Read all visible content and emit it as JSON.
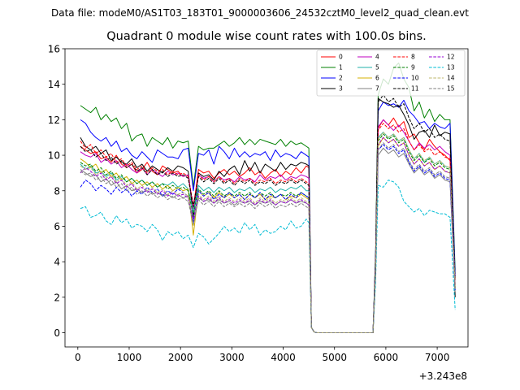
{
  "supertitle": "Data file: modeM0/AS1T03_183T01_9000003606_24532cztM0_level2_quad_clean.evt",
  "chart_data": {
    "type": "line",
    "title": "Quadrant 0 module wise count rates with 100.0s bins.",
    "xlabel": "",
    "ylabel": "",
    "x_offset_label": "+3.243e8",
    "xlim": [
      -250,
      7600
    ],
    "ylim": [
      -0.8,
      16
    ],
    "x_ticks": [
      0,
      1000,
      2000,
      3000,
      4000,
      5000,
      6000,
      7000
    ],
    "y_ticks": [
      0,
      2,
      4,
      6,
      8,
      10,
      12,
      14,
      16
    ],
    "legend_position": "top-right",
    "x": [
      50,
      150,
      250,
      350,
      450,
      550,
      650,
      750,
      850,
      950,
      1050,
      1150,
      1250,
      1350,
      1450,
      1550,
      1650,
      1750,
      1850,
      1950,
      2050,
      2150,
      2250,
      2350,
      2450,
      2550,
      2650,
      2750,
      2850,
      2950,
      3050,
      3150,
      3250,
      3350,
      3450,
      3550,
      3650,
      3750,
      3850,
      3950,
      4050,
      4150,
      4250,
      4350,
      4450,
      4500,
      4550,
      4600,
      4650,
      5750,
      5800,
      5850,
      5950,
      6050,
      6150,
      6250,
      6350,
      6450,
      6550,
      6650,
      6750,
      6850,
      6950,
      7050,
      7150,
      7250,
      7350
    ],
    "series": [
      {
        "name": "0",
        "color": "#ff0000",
        "dash": "solid",
        "values": [
          10.5,
          10.3,
          10.1,
          10.2,
          9.8,
          9.9,
          9.6,
          10.0,
          9.5,
          9.3,
          9.5,
          9.0,
          9.2,
          9.6,
          9.1,
          8.9,
          9.4,
          9.2,
          9.0,
          9.1,
          8.8,
          8.9,
          7.0,
          9.2,
          9.0,
          9.1,
          8.7,
          9.0,
          9.2,
          8.9,
          9.1,
          8.8,
          9.0,
          9.3,
          8.9,
          9.1,
          8.7,
          9.0,
          9.2,
          8.8,
          9.1,
          8.9,
          9.3,
          9.0,
          9.4,
          9.3,
          0.3,
          0.05,
          0.0,
          0.0,
          4.0,
          11.5,
          12.0,
          11.7,
          12.1,
          11.6,
          11.9,
          11.0,
          11.2,
          10.7,
          10.3,
          10.9,
          10.5,
          10.2,
          10.0,
          9.7,
          3.0
        ]
      },
      {
        "name": "1",
        "color": "#008000",
        "dash": "solid",
        "values": [
          12.8,
          12.6,
          12.4,
          12.7,
          12.0,
          12.3,
          11.9,
          12.1,
          11.5,
          11.8,
          10.8,
          11.1,
          11.2,
          10.5,
          11.0,
          10.8,
          10.6,
          11.0,
          10.4,
          10.8,
          10.7,
          10.8,
          8.2,
          10.5,
          10.3,
          10.4,
          10.4,
          10.6,
          10.8,
          10.5,
          10.7,
          11.0,
          10.6,
          10.9,
          10.6,
          10.9,
          10.8,
          10.7,
          10.6,
          10.9,
          10.5,
          10.8,
          10.6,
          10.7,
          10.5,
          10.4,
          0.3,
          0.05,
          0.0,
          0.0,
          4.5,
          13.4,
          14.3,
          14.0,
          14.9,
          15.2,
          14.3,
          13.8,
          12.5,
          13.0,
          12.1,
          12.6,
          11.9,
          12.3,
          12.0,
          12.0,
          3.5
        ]
      },
      {
        "name": "2",
        "color": "#0000ff",
        "dash": "solid",
        "values": [
          12.0,
          11.8,
          11.3,
          11.0,
          10.8,
          11.0,
          10.5,
          10.8,
          10.2,
          10.4,
          10.0,
          9.8,
          10.2,
          9.9,
          9.6,
          10.3,
          10.1,
          9.9,
          9.9,
          9.8,
          10.3,
          10.4,
          8.0,
          10.1,
          10.0,
          10.3,
          9.5,
          10.5,
          10.2,
          9.8,
          10.4,
          9.9,
          10.2,
          9.9,
          10.1,
          10.0,
          10.2,
          9.7,
          10.3,
          9.9,
          10.1,
          10.0,
          9.8,
          10.2,
          10.0,
          9.9,
          0.3,
          0.05,
          0.0,
          0.0,
          4.3,
          12.5,
          13.0,
          12.8,
          12.9,
          12.7,
          13.1,
          12.5,
          12.2,
          11.8,
          11.9,
          11.5,
          11.8,
          11.6,
          11.5,
          11.8,
          3.2
        ]
      },
      {
        "name": "3",
        "color": "#000000",
        "dash": "solid",
        "values": [
          11.0,
          10.5,
          10.3,
          10.5,
          10.1,
          10.3,
          9.7,
          9.9,
          9.6,
          9.5,
          9.8,
          9.3,
          9.5,
          9.1,
          9.4,
          9.2,
          9.0,
          9.3,
          9.1,
          9.4,
          9.3,
          9.1,
          6.5,
          9.0,
          8.8,
          8.9,
          8.6,
          9.1,
          8.8,
          9.2,
          9.4,
          8.9,
          9.7,
          9.1,
          9.6,
          9.0,
          9.5,
          9.3,
          9.1,
          9.6,
          9.2,
          9.5,
          9.4,
          9.6,
          9.5,
          9.4,
          0.3,
          0.05,
          0.0,
          0.0,
          4.2,
          13.2,
          13.0,
          12.9,
          12.7,
          12.8,
          12.3,
          11.7,
          10.9,
          11.3,
          11.4,
          11.0,
          11.7,
          11.1,
          11.3,
          11.2,
          2.0
        ]
      },
      {
        "name": "4",
        "color": "#c000c0",
        "dash": "solid",
        "values": [
          10.2,
          10.0,
          9.9,
          10.1,
          9.6,
          9.8,
          9.5,
          9.7,
          9.3,
          9.5,
          9.2,
          9.0,
          9.3,
          8.9,
          9.2,
          9.0,
          8.8,
          9.1,
          8.9,
          9.0,
          8.8,
          8.9,
          7.0,
          8.9,
          8.7,
          8.8,
          8.5,
          8.8,
          8.6,
          8.7,
          8.5,
          8.8,
          8.6,
          8.7,
          8.5,
          8.9,
          8.6,
          8.8,
          8.7,
          8.9,
          8.6,
          8.8,
          8.7,
          8.9,
          8.8,
          8.7,
          0.3,
          0.05,
          0.0,
          0.0,
          3.9,
          11.6,
          12.0,
          11.7,
          11.4,
          11.7,
          11.3,
          10.8,
          10.3,
          10.7,
          10.4,
          10.6,
          10.3,
          10.5,
          10.2,
          10.0,
          2.8
        ]
      },
      {
        "name": "5",
        "color": "#20b2aa",
        "dash": "solid",
        "values": [
          9.5,
          9.2,
          9.4,
          9.0,
          9.1,
          8.8,
          9.0,
          8.6,
          8.8,
          8.5,
          8.7,
          8.4,
          8.6,
          8.3,
          8.5,
          8.2,
          8.4,
          8.3,
          8.5,
          8.2,
          8.4,
          8.1,
          6.8,
          8.3,
          8.0,
          8.2,
          7.9,
          8.2,
          8.0,
          8.2,
          7.9,
          8.1,
          8.0,
          8.2,
          7.9,
          8.1,
          8.0,
          8.2,
          7.9,
          8.1,
          8.0,
          8.2,
          8.1,
          8.3,
          8.0,
          8.0,
          0.3,
          0.05,
          0.0,
          0.0,
          3.7,
          11.0,
          11.3,
          11.0,
          11.2,
          10.8,
          11.0,
          10.3,
          9.8,
          10.1,
          9.6,
          9.9,
          9.5,
          9.7,
          9.4,
          9.3,
          2.6
        ]
      },
      {
        "name": "6",
        "color": "#d4b000",
        "dash": "solid",
        "values": [
          9.8,
          9.6,
          9.3,
          9.5,
          9.0,
          9.2,
          8.8,
          9.0,
          8.6,
          8.8,
          8.4,
          8.6,
          8.3,
          8.5,
          8.2,
          8.4,
          8.1,
          8.3,
          8.0,
          8.2,
          8.0,
          8.1,
          5.5,
          8.0,
          7.7,
          7.9,
          7.6,
          7.9,
          7.6,
          7.8,
          7.6,
          7.8,
          7.5,
          7.8,
          7.6,
          7.8,
          7.5,
          7.7,
          7.6,
          7.8,
          7.5,
          7.7,
          7.6,
          7.8,
          7.6,
          7.5,
          0.3,
          0.05,
          0.0,
          0.0,
          3.5,
          10.5,
          11.0,
          10.7,
          10.9,
          10.5,
          10.7,
          10.0,
          9.5,
          9.8,
          9.4,
          9.6,
          9.2,
          9.4,
          9.1,
          9.0,
          2.5
        ]
      },
      {
        "name": "7",
        "color": "#808080",
        "dash": "solid",
        "values": [
          9.2,
          9.0,
          8.8,
          8.9,
          8.5,
          8.7,
          8.3,
          8.5,
          8.1,
          8.3,
          8.0,
          8.1,
          7.9,
          8.0,
          7.8,
          7.9,
          7.7,
          7.8,
          7.6,
          7.8,
          7.6,
          7.7,
          6.2,
          7.6,
          7.4,
          7.5,
          7.3,
          7.5,
          7.3,
          7.4,
          7.2,
          7.4,
          7.3,
          7.4,
          7.2,
          7.4,
          7.3,
          7.4,
          7.2,
          7.4,
          7.3,
          7.5,
          7.3,
          7.4,
          7.3,
          7.2,
          0.3,
          0.05,
          0.0,
          0.0,
          3.3,
          10.0,
          10.4,
          10.1,
          10.3,
          9.9,
          10.1,
          9.5,
          9.0,
          9.3,
          8.9,
          9.1,
          8.7,
          8.9,
          8.6,
          8.5,
          2.3
        ]
      },
      {
        "name": "8",
        "color": "#ff0000",
        "dash": "dashed",
        "values": [
          10.8,
          10.4,
          10.6,
          10.1,
          10.3,
          9.9,
          10.1,
          9.6,
          9.8,
          9.4,
          9.6,
          9.2,
          9.4,
          9.0,
          9.3,
          9.1,
          9.2,
          8.9,
          9.1,
          8.9,
          9.0,
          8.8,
          7.2,
          8.9,
          8.6,
          8.8,
          8.5,
          8.8,
          8.5,
          8.7,
          8.4,
          8.7,
          8.5,
          8.7,
          8.4,
          8.6,
          8.5,
          8.7,
          8.4,
          8.6,
          8.5,
          8.7,
          8.5,
          8.7,
          8.5,
          8.4,
          0.3,
          0.05,
          0.0,
          0.0,
          3.8,
          11.4,
          11.8,
          11.5,
          11.7,
          11.3,
          11.5,
          10.8,
          10.3,
          10.6,
          10.2,
          10.4,
          10.0,
          10.2,
          9.9,
          9.8,
          2.7
        ]
      },
      {
        "name": "9",
        "color": "#008000",
        "dash": "dashed",
        "values": [
          9.6,
          9.4,
          9.5,
          9.1,
          9.3,
          8.9,
          9.1,
          8.7,
          8.9,
          8.5,
          8.7,
          8.4,
          8.6,
          8.3,
          8.5,
          8.2,
          8.4,
          8.1,
          8.3,
          8.1,
          8.2,
          8.0,
          6.6,
          8.1,
          7.8,
          8.0,
          7.7,
          8.0,
          7.7,
          7.9,
          7.7,
          7.9,
          7.7,
          7.9,
          7.6,
          7.9,
          7.7,
          7.9,
          7.6,
          7.8,
          7.7,
          7.9,
          7.7,
          7.9,
          7.7,
          7.6,
          0.3,
          0.05,
          0.0,
          0.0,
          3.6,
          10.8,
          11.2,
          10.9,
          11.1,
          10.7,
          10.9,
          10.2,
          9.7,
          10.0,
          9.6,
          9.8,
          9.4,
          9.6,
          9.3,
          9.2,
          2.5
        ]
      },
      {
        "name": "10",
        "color": "#0000ff",
        "dash": "dashed",
        "values": [
          8.2,
          8.6,
          8.4,
          8.0,
          8.3,
          8.1,
          7.8,
          8.2,
          7.9,
          8.1,
          7.7,
          8.0,
          7.8,
          8.2,
          7.9,
          8.1,
          7.7,
          8.0,
          7.8,
          8.1,
          7.9,
          7.7,
          6.2,
          8.0,
          7.7,
          7.9,
          7.5,
          7.8,
          7.6,
          7.9,
          7.6,
          7.8,
          7.5,
          7.8,
          7.6,
          7.9,
          7.5,
          7.8,
          7.6,
          7.8,
          7.5,
          7.8,
          7.6,
          7.9,
          7.7,
          7.6,
          0.3,
          0.05,
          0.0,
          0.0,
          3.4,
          10.3,
          10.6,
          10.3,
          10.5,
          10.1,
          10.3,
          9.6,
          9.1,
          9.4,
          9.0,
          9.2,
          8.8,
          9.0,
          8.7,
          8.6,
          2.4
        ]
      },
      {
        "name": "11",
        "color": "#000000",
        "dash": "dashed",
        "values": [
          10.5,
          10.2,
          10.3,
          9.9,
          10.1,
          9.7,
          9.9,
          9.5,
          9.7,
          9.3,
          9.5,
          9.1,
          9.3,
          8.9,
          9.2,
          8.9,
          9.1,
          8.8,
          9.0,
          8.8,
          8.9,
          8.7,
          7.1,
          8.8,
          8.5,
          8.7,
          8.4,
          8.7,
          8.4,
          8.6,
          8.3,
          8.6,
          8.4,
          8.6,
          8.3,
          8.5,
          8.4,
          8.6,
          8.3,
          8.5,
          8.4,
          8.6,
          8.4,
          8.6,
          8.4,
          8.3,
          0.3,
          0.05,
          0.0,
          0.0,
          4.0,
          13.0,
          13.4,
          13.0,
          13.2,
          12.7,
          12.9,
          12.1,
          11.5,
          11.8,
          11.3,
          11.5,
          11.0,
          11.2,
          10.9,
          10.8,
          3.0
        ]
      },
      {
        "name": "12",
        "color": "#9400d3",
        "dash": "dashed",
        "values": [
          9.0,
          9.3,
          9.1,
          8.8,
          9.0,
          8.6,
          8.8,
          8.4,
          8.6,
          8.2,
          8.4,
          8.0,
          8.2,
          7.9,
          8.1,
          7.8,
          8.0,
          7.7,
          7.9,
          7.7,
          7.8,
          7.6,
          6.4,
          7.7,
          7.4,
          7.6,
          7.3,
          7.6,
          7.3,
          7.5,
          7.3,
          7.5,
          7.3,
          7.5,
          7.2,
          7.5,
          7.3,
          7.5,
          7.2,
          7.4,
          7.3,
          7.5,
          7.3,
          7.5,
          7.3,
          7.2,
          0.3,
          0.05,
          0.0,
          0.0,
          3.5,
          10.6,
          11.0,
          10.7,
          10.9,
          10.5,
          10.7,
          10.0,
          9.5,
          9.8,
          9.4,
          9.6,
          9.2,
          9.4,
          9.1,
          9.0,
          2.5
        ]
      },
      {
        "name": "13",
        "color": "#00bcd4",
        "dash": "dashed",
        "values": [
          7.0,
          7.1,
          6.5,
          6.6,
          6.8,
          6.3,
          6.1,
          6.6,
          6.2,
          6.4,
          5.9,
          6.1,
          6.0,
          5.7,
          6.1,
          5.8,
          5.2,
          5.7,
          5.5,
          5.7,
          5.3,
          5.5,
          4.8,
          5.6,
          5.4,
          5.0,
          5.3,
          5.6,
          6.0,
          5.7,
          5.9,
          5.6,
          6.2,
          5.8,
          6.1,
          5.5,
          5.8,
          5.6,
          5.7,
          6.0,
          5.8,
          6.3,
          5.9,
          6.0,
          6.4,
          6.2,
          0.3,
          0.05,
          0.0,
          0.0,
          2.8,
          8.3,
          8.2,
          8.6,
          8.5,
          8.2,
          7.4,
          7.1,
          6.8,
          7.0,
          6.6,
          6.9,
          6.8,
          6.7,
          6.7,
          6.5,
          1.3
        ]
      },
      {
        "name": "14",
        "color": "#bdb76b",
        "dash": "dashed",
        "values": [
          9.4,
          9.2,
          9.3,
          8.9,
          9.1,
          8.7,
          8.9,
          8.5,
          8.7,
          8.3,
          8.5,
          8.1,
          8.3,
          8.0,
          8.2,
          7.9,
          8.1,
          7.8,
          8.0,
          7.8,
          7.9,
          7.7,
          6.0,
          7.8,
          7.5,
          7.7,
          7.4,
          7.7,
          7.4,
          7.6,
          7.4,
          7.6,
          7.4,
          7.6,
          7.3,
          7.6,
          7.4,
          7.6,
          7.3,
          7.5,
          7.4,
          7.6,
          7.4,
          7.6,
          7.4,
          7.3,
          0.3,
          0.05,
          0.0,
          0.0,
          3.6,
          10.9,
          11.3,
          11.0,
          11.2,
          10.8,
          11.0,
          10.3,
          9.8,
          10.1,
          9.7,
          9.9,
          9.5,
          9.7,
          9.4,
          9.3,
          2.6
        ]
      },
      {
        "name": "15",
        "color": "#808080",
        "dash": "dashed",
        "values": [
          9.1,
          8.9,
          9.0,
          8.6,
          8.8,
          8.4,
          8.6,
          8.2,
          8.4,
          8.0,
          8.2,
          7.8,
          8.0,
          7.7,
          7.9,
          7.6,
          7.8,
          7.5,
          7.7,
          7.5,
          7.6,
          7.4,
          6.1,
          7.5,
          7.2,
          7.4,
          7.1,
          7.4,
          7.1,
          7.3,
          7.1,
          7.3,
          7.1,
          7.3,
          7.0,
          7.3,
          7.1,
          7.3,
          7.0,
          7.2,
          7.1,
          7.3,
          7.1,
          7.3,
          7.1,
          7.0,
          0.3,
          0.05,
          0.0,
          0.0,
          3.4,
          10.3,
          10.7,
          10.4,
          10.6,
          10.2,
          10.4,
          9.7,
          9.2,
          9.5,
          9.1,
          9.3,
          8.9,
          9.1,
          8.8,
          8.7,
          2.4
        ]
      }
    ]
  }
}
